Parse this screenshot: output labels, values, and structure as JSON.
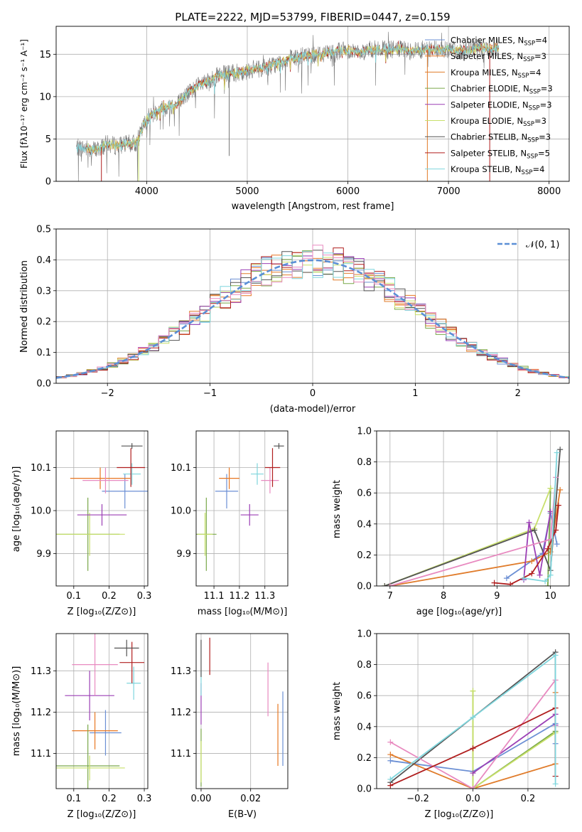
{
  "colors": {
    "chabrier_miles": "#6b8fd4",
    "salpeter_miles": "#e87722",
    "kroupa_miles": "#e07b2a",
    "chabrier_elodie": "#7aa84a",
    "salpeter_elodie": "#9b3fb5",
    "kroupa_elodie": "#c8e06a",
    "chabrier_stelib": "#555555",
    "salpeter_stelib": "#b01e1e",
    "kroupa_stelib": "#7fd6dd",
    "pink": "#e88ac0",
    "normal": "#5b8fd6",
    "grid": "#b0b0b0"
  },
  "chart_data": [
    {
      "id": "spectrum",
      "type": "line",
      "title": "PLATE=2222, MJD=53799, FIBERID=0447, z=0.159",
      "xlabel": "wavelength [Angstrom, rest frame]",
      "ylabel": "Flux [fλ10⁻¹⁷ erg cm⁻² s⁻¹ A⁻¹]",
      "xlim": [
        3100,
        8200
      ],
      "ylim": [
        0,
        18.3
      ],
      "xticks": [
        "4000",
        "5000",
        "6000",
        "7000",
        "8000"
      ],
      "yticks": [
        "0",
        "5",
        "10",
        "15"
      ],
      "legend_position": "right",
      "legend": [
        {
          "label": "Chabrier MILES, N",
          "sub": "SSP",
          "tail": "=4",
          "color_key": "chabrier_miles"
        },
        {
          "label": "Salpeter MILES, N",
          "sub": "SSP",
          "tail": "=3",
          "color_key": "salpeter_miles"
        },
        {
          "label": "Kroupa MILES, N",
          "sub": "SSP",
          "tail": "=4",
          "color_key": "kroupa_miles"
        },
        {
          "label": "Chabrier ELODIE, N",
          "sub": "SSP",
          "tail": "=3",
          "color_key": "chabrier_elodie"
        },
        {
          "label": "Salpeter ELODIE, N",
          "sub": "SSP",
          "tail": "=3",
          "color_key": "salpeter_elodie"
        },
        {
          "label": "Kroupa ELODIE, N",
          "sub": "SSP",
          "tail": "=3",
          "color_key": "kroupa_elodie"
        },
        {
          "label": "Chabrier STELIB, N",
          "sub": "SSP",
          "tail": "=3",
          "color_key": "chabrier_stelib"
        },
        {
          "label": "Salpeter STELIB, N",
          "sub": "SSP",
          "tail": "=5",
          "color_key": "salpeter_stelib"
        },
        {
          "label": "Kroupa STELIB, N",
          "sub": "SSP",
          "tail": "=4",
          "color_key": "kroupa_stelib"
        }
      ],
      "continuum": [
        [
          3300,
          4.0
        ],
        [
          3400,
          3.9
        ],
        [
          3500,
          3.7
        ],
        [
          3600,
          4.4
        ],
        [
          3700,
          4.2
        ],
        [
          3800,
          4.4
        ],
        [
          3900,
          4.5
        ],
        [
          4000,
          7.4
        ],
        [
          4100,
          8.3
        ],
        [
          4200,
          8.8
        ],
        [
          4300,
          9.1
        ],
        [
          4400,
          10.3
        ],
        [
          4500,
          11.2
        ],
        [
          4600,
          11.6
        ],
        [
          4700,
          12.4
        ],
        [
          4800,
          12.7
        ],
        [
          4900,
          12.8
        ],
        [
          5000,
          13.1
        ],
        [
          5100,
          13.3
        ],
        [
          5200,
          13.5
        ],
        [
          5300,
          13.9
        ],
        [
          5400,
          14.4
        ],
        [
          5500,
          14.6
        ],
        [
          5600,
          14.9
        ],
        [
          5700,
          15.0
        ],
        [
          5800,
          15.2
        ],
        [
          5900,
          15.4
        ],
        [
          6000,
          15.5
        ],
        [
          6100,
          15.2
        ],
        [
          6200,
          15.5
        ],
        [
          6300,
          15.6
        ],
        [
          6400,
          15.5
        ],
        [
          6500,
          15.6
        ],
        [
          6600,
          15.4
        ],
        [
          6700,
          15.5
        ],
        [
          6800,
          15.6
        ],
        [
          6900,
          15.5
        ],
        [
          7000,
          15.6
        ],
        [
          7100,
          15.4
        ],
        [
          7200,
          15.5
        ],
        [
          7300,
          15.7
        ],
        [
          7400,
          15.6
        ],
        [
          7500,
          15.9
        ]
      ]
    },
    {
      "id": "residuals",
      "type": "bar",
      "xlabel": "(data-model)/error",
      "ylabel": "Normed distribution",
      "xlim": [
        -2.5,
        2.5
      ],
      "ylim": [
        0,
        0.5
      ],
      "xticks": [
        "−2",
        "−1",
        "0",
        "1",
        "2"
      ],
      "yticks": [
        "0.0",
        "0.1",
        "0.2",
        "0.3",
        "0.4",
        "0.5"
      ],
      "legend_position": "top-right",
      "normal_label": "𝒩(0, 1)",
      "bin_width": 0.1,
      "series_color_keys": [
        "chabrier_miles",
        "salpeter_miles",
        "kroupa_miles",
        "chabrier_elodie",
        "salpeter_elodie",
        "kroupa_elodie",
        "chabrier_stelib",
        "salpeter_stelib",
        "kroupa_stelib"
      ]
    },
    {
      "id": "age_vs_Z",
      "type": "scatter",
      "xlabel": "Z [log₁₀(Z/Z⊙)]",
      "ylabel": "age  [log₁₀(age/yr)]",
      "xlim": [
        0.05,
        0.31
      ],
      "ylim": [
        9.825,
        10.185
      ],
      "xticks": [
        "0.1",
        "0.2",
        "0.3"
      ],
      "yticks": [
        "9.9",
        "10.0",
        "10.1"
      ],
      "points": [
        {
          "x": 0.245,
          "y": 10.045,
          "xerr": 0.065,
          "yerr": 0.04,
          "color_key": "chabrier_miles"
        },
        {
          "x": 0.175,
          "y": 10.075,
          "xerr": 0.085,
          "yerr": 0.025,
          "color_key": "salpeter_miles"
        },
        {
          "x": 0.14,
          "y": 9.945,
          "xerr": 0.09,
          "yerr": 0.085,
          "color_key": "chabrier_elodie"
        },
        {
          "x": 0.145,
          "y": 9.945,
          "xerr": 0.1,
          "yerr": 0.05,
          "color_key": "kroupa_elodie"
        },
        {
          "x": 0.18,
          "y": 9.99,
          "xerr": 0.07,
          "yerr": 0.025,
          "color_key": "salpeter_elodie"
        },
        {
          "x": 0.19,
          "y": 10.07,
          "xerr": 0.065,
          "yerr": 0.03,
          "color_key": "pink"
        },
        {
          "x": 0.265,
          "y": 10.085,
          "xerr": 0.025,
          "yerr": 0.025,
          "color_key": "kroupa_stelib"
        },
        {
          "x": 0.262,
          "y": 10.1,
          "xerr": 0.04,
          "yerr": 0.045,
          "color_key": "salpeter_stelib"
        },
        {
          "x": 0.265,
          "y": 10.15,
          "xerr": 0.03,
          "yerr": 0.0,
          "color_key": "chabrier_stelib"
        }
      ]
    },
    {
      "id": "age_vs_mass",
      "type": "scatter",
      "xlabel": "mass [log₁₀(M/M⊙)]",
      "xlim": [
        11.03,
        11.39
      ],
      "ylim": [
        9.825,
        10.185
      ],
      "xticks": [
        "11.1",
        "11.2",
        "11.3"
      ],
      "yticks": [
        "9.9",
        "10.0",
        "10.1"
      ],
      "points": [
        {
          "x": 11.15,
          "y": 10.045,
          "xerr": 0.045,
          "yerr": 0.04,
          "color_key": "chabrier_miles"
        },
        {
          "x": 11.16,
          "y": 10.075,
          "xerr": 0.04,
          "yerr": 0.025,
          "color_key": "salpeter_miles"
        },
        {
          "x": 11.07,
          "y": 9.945,
          "xerr": 0.04,
          "yerr": 0.085,
          "color_key": "chabrier_elodie"
        },
        {
          "x": 11.065,
          "y": 9.945,
          "xerr": 0.03,
          "yerr": 0.05,
          "color_key": "kroupa_elodie"
        },
        {
          "x": 11.24,
          "y": 9.99,
          "xerr": 0.035,
          "yerr": 0.025,
          "color_key": "salpeter_elodie"
        },
        {
          "x": 11.32,
          "y": 10.07,
          "xerr": 0.035,
          "yerr": 0.03,
          "color_key": "pink"
        },
        {
          "x": 11.27,
          "y": 10.085,
          "xerr": 0.025,
          "yerr": 0.025,
          "color_key": "kroupa_stelib"
        },
        {
          "x": 11.33,
          "y": 10.1,
          "xerr": 0.03,
          "yerr": 0.045,
          "color_key": "salpeter_stelib"
        },
        {
          "x": 11.355,
          "y": 10.15,
          "xerr": 0.02,
          "yerr": 0.0,
          "color_key": "chabrier_stelib"
        }
      ]
    },
    {
      "id": "weight_vs_age",
      "type": "line",
      "xlabel": "age  [log₁₀(age/yr)]",
      "ylabel": "mass weight",
      "xlim": [
        6.75,
        10.35
      ],
      "ylim": [
        0,
        1.0
      ],
      "xticks": [
        "7",
        "8",
        "9",
        "10"
      ],
      "yticks": [
        "0.0",
        "0.2",
        "0.4",
        "0.6",
        "0.8",
        "1.0"
      ],
      "series": [
        {
          "color_key": "chabrier_miles",
          "x": [
            9.18,
            9.85,
            10.0,
            10.12
          ],
          "y": [
            0.05,
            0.21,
            0.47,
            0.27
          ]
        },
        {
          "color_key": "kroupa_miles",
          "x": [
            7.0,
            9.65,
            10.0,
            10.18
          ],
          "y": [
            0.0,
            0.16,
            0.22,
            0.62
          ]
        },
        {
          "color_key": "chabrier_elodie",
          "x": [
            9.95,
            10.0
          ],
          "y": [
            0.0,
            0.63
          ]
        },
        {
          "color_key": "kroupa_elodie",
          "x": [
            6.9,
            9.7,
            10.0
          ],
          "y": [
            0.0,
            0.37,
            0.63
          ]
        },
        {
          "color_key": "chabrier_stelib",
          "x": [
            6.9,
            9.7,
            10.0,
            10.18
          ],
          "y": [
            0.0,
            0.36,
            0.1,
            0.88
          ]
        },
        {
          "color_key": "salpeter_elodie",
          "x": [
            9.5,
            9.6,
            9.8,
            10.0
          ],
          "y": [
            0.04,
            0.41,
            0.07,
            0.48
          ]
        },
        {
          "color_key": "pink",
          "x": [
            7.0,
            10.0,
            10.1
          ],
          "y": [
            0.0,
            0.3,
            0.7
          ]
        },
        {
          "color_key": "salpeter_stelib",
          "x": [
            8.95,
            9.25,
            9.65,
            9.95,
            10.1,
            10.15
          ],
          "y": [
            0.02,
            0.01,
            0.08,
            0.24,
            0.36,
            0.52
          ]
        },
        {
          "color_key": "kroupa_stelib",
          "x": [
            9.5,
            9.9,
            10.0,
            10.12
          ],
          "y": [
            0.05,
            0.03,
            0.07,
            0.86
          ]
        }
      ]
    },
    {
      "id": "mass_vs_Z",
      "type": "scatter",
      "xlabel": "Z [log₁₀(Z/Z⊙)]",
      "ylabel": "mass [log₁₀(M/M⊙)]",
      "xlim": [
        0.05,
        0.31
      ],
      "ylim": [
        11.015,
        11.39
      ],
      "xticks": [
        "0.1",
        "0.2",
        "0.3"
      ],
      "yticks": [
        "11.1",
        "11.2",
        "11.3"
      ],
      "points": [
        {
          "x": 0.19,
          "y": 11.15,
          "xerr": 0.045,
          "yerr": 0.055,
          "color_key": "chabrier_miles"
        },
        {
          "x": 0.16,
          "y": 11.155,
          "xerr": 0.065,
          "yerr": 0.045,
          "color_key": "salpeter_miles"
        },
        {
          "x": 0.14,
          "y": 11.07,
          "xerr": 0.09,
          "yerr": 0.1,
          "color_key": "chabrier_elodie"
        },
        {
          "x": 0.145,
          "y": 11.065,
          "xerr": 0.1,
          "yerr": 0.03,
          "color_key": "kroupa_elodie"
        },
        {
          "x": 0.145,
          "y": 11.24,
          "xerr": 0.07,
          "yerr": 0.06,
          "color_key": "salpeter_elodie"
        },
        {
          "x": 0.16,
          "y": 11.315,
          "xerr": 0.065,
          "yerr": 0.075,
          "color_key": "pink"
        },
        {
          "x": 0.27,
          "y": 11.27,
          "xerr": 0.02,
          "yerr": 0.04,
          "color_key": "kroupa_stelib"
        },
        {
          "x": 0.265,
          "y": 11.32,
          "xerr": 0.035,
          "yerr": 0.05,
          "color_key": "salpeter_stelib"
        },
        {
          "x": 0.25,
          "y": 11.355,
          "xerr": 0.035,
          "yerr": 0.02,
          "color_key": "chabrier_stelib"
        }
      ]
    },
    {
      "id": "mass_vs_ebv",
      "type": "scatter",
      "xlabel": "E(B-V)",
      "xlim": [
        -0.002,
        0.035
      ],
      "ylim": [
        11.015,
        11.39
      ],
      "xticks": [
        "0.00",
        "0.02"
      ],
      "yticks": [
        "11.1",
        "11.2",
        "11.3"
      ],
      "points": [
        {
          "x": 0.033,
          "y": 11.16,
          "xerr": 0,
          "yerr": 0.09,
          "color_key": "chabrier_miles"
        },
        {
          "x": 0.031,
          "y": 11.145,
          "xerr": 0,
          "yerr": 0.075,
          "color_key": "salpeter_miles"
        },
        {
          "x": 0.0,
          "y": 11.09,
          "xerr": 0,
          "yerr": 0.07,
          "color_key": "chabrier_elodie"
        },
        {
          "x": 0.0,
          "y": 11.08,
          "xerr": 0,
          "yerr": 0.05,
          "color_key": "kroupa_elodie"
        },
        {
          "x": 0.0,
          "y": 11.22,
          "xerr": 0,
          "yerr": 0.05,
          "color_key": "salpeter_elodie"
        },
        {
          "x": 0.027,
          "y": 11.255,
          "xerr": 0,
          "yerr": 0.065,
          "color_key": "pink"
        },
        {
          "x": 0.0,
          "y": 11.27,
          "xerr": 0,
          "yerr": 0.03,
          "color_key": "kroupa_stelib"
        },
        {
          "x": 0.0035,
          "y": 11.335,
          "xerr": 0,
          "yerr": 0.045,
          "color_key": "salpeter_stelib"
        },
        {
          "x": 0.0,
          "y": 11.33,
          "xerr": 0,
          "yerr": 0.045,
          "color_key": "chabrier_stelib"
        }
      ]
    },
    {
      "id": "weight_vs_Z",
      "type": "line",
      "xlabel": "Z [log₁₀(Z/Z⊙)]",
      "ylabel": "mass weight",
      "xlim": [
        -0.35,
        0.35
      ],
      "ylim": [
        0,
        1.0
      ],
      "xticks": [
        "−0.2",
        "0.0",
        "0.2"
      ],
      "yticks": [
        "0.0",
        "0.2",
        "0.4",
        "0.6",
        "0.8",
        "1.0"
      ],
      "series": [
        {
          "color_key": "chabrier_miles",
          "x": [
            -0.3,
            0.0,
            0.3,
            0.3
          ],
          "y": [
            0.18,
            0.11,
            0.42,
            0.29
          ]
        },
        {
          "color_key": "kroupa_miles",
          "x": [
            -0.3,
            0.0,
            0.3,
            0.3
          ],
          "y": [
            0.22,
            0.0,
            0.16,
            0.62
          ]
        },
        {
          "color_key": "chabrier_elodie",
          "x": [
            0.0,
            0.0,
            0.3
          ],
          "y": [
            0.63,
            0.0,
            0.37
          ]
        },
        {
          "color_key": "kroupa_elodie",
          "x": [
            0.0,
            0.0,
            0.3
          ],
          "y": [
            0.63,
            0.0,
            0.36
          ]
        },
        {
          "color_key": "chabrier_stelib",
          "x": [
            -0.3,
            0.3,
            0.3
          ],
          "y": [
            0.04,
            0.88,
            0.08
          ]
        },
        {
          "color_key": "salpeter_elodie",
          "x": [
            0.0,
            0.3,
            0.3
          ],
          "y": [
            0.1,
            0.48,
            0.41
          ]
        },
        {
          "color_key": "pink",
          "x": [
            -0.3,
            0.0,
            0.3
          ],
          "y": [
            0.3,
            0.0,
            0.7
          ]
        },
        {
          "color_key": "salpeter_stelib",
          "x": [
            -0.3,
            0.0,
            0.3,
            0.3
          ],
          "y": [
            0.02,
            0.26,
            0.52,
            0.08
          ]
        },
        {
          "color_key": "kroupa_stelib",
          "x": [
            -0.3,
            0.0,
            0.3,
            0.3
          ],
          "y": [
            0.06,
            0.46,
            0.86,
            0.03
          ]
        }
      ]
    }
  ]
}
